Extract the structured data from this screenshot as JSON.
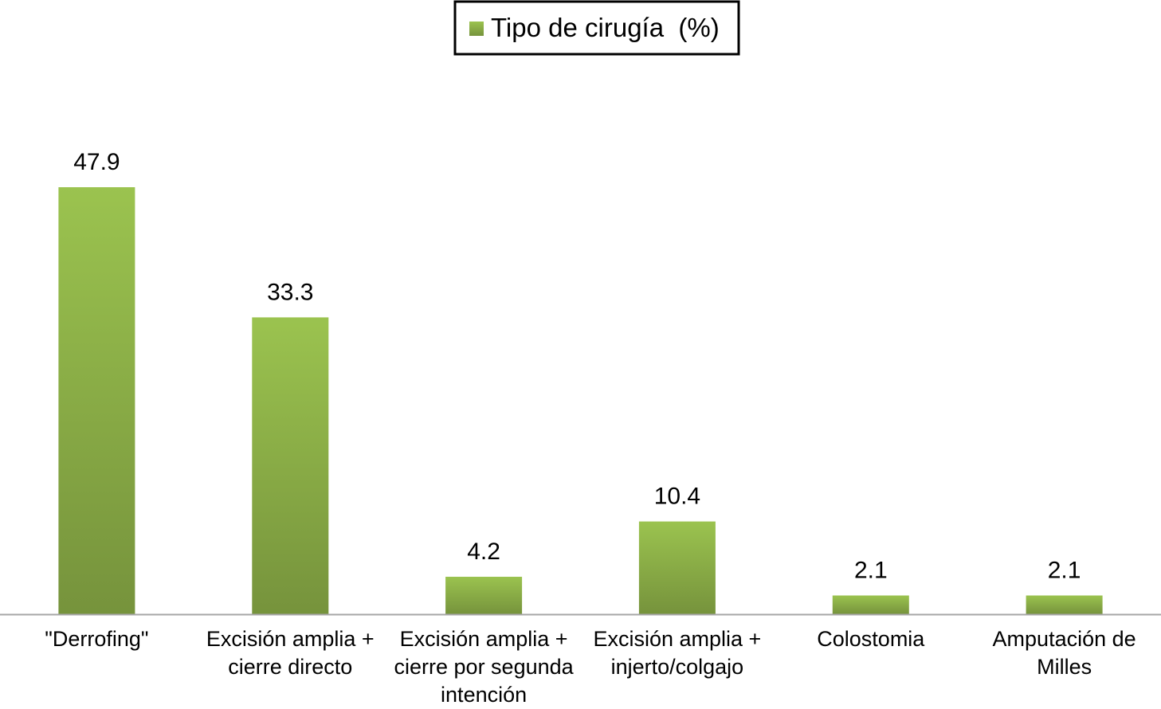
{
  "chart_data": {
    "type": "bar",
    "categories": [
      "\"Derrofing\"",
      "Excisión amplia + cierre directo",
      "Excisión amplia + cierre por segunda intención",
      "Excisión amplia + injerto/colgajo",
      "Colostomia",
      "Amputación de Milles"
    ],
    "category_lines": [
      [
        "\"Derrofing\""
      ],
      [
        "Excisión amplia +",
        "cierre directo"
      ],
      [
        "Excisión amplia +",
        "cierre por segunda",
        "intención"
      ],
      [
        "Excisión amplia +",
        "injerto/colgajo"
      ],
      [
        "Colostomia"
      ],
      [
        "Amputación de",
        "Milles"
      ]
    ],
    "series": [
      {
        "name": "Tipo de cirugía  (%)",
        "values": [
          47.9,
          33.3,
          4.2,
          10.4,
          2.1,
          2.1
        ],
        "labels": [
          "47.9",
          "33.3",
          "4.2",
          "10.4",
          "2.1",
          "2.1"
        ]
      }
    ],
    "ylim": [
      0,
      50
    ],
    "grid": false,
    "legend_position": "top-center",
    "colors": {
      "bar_top": "#9bc34f",
      "bar_bottom": "#76933c",
      "axis": "#a6a6a6",
      "legend_border": "#000000"
    }
  }
}
